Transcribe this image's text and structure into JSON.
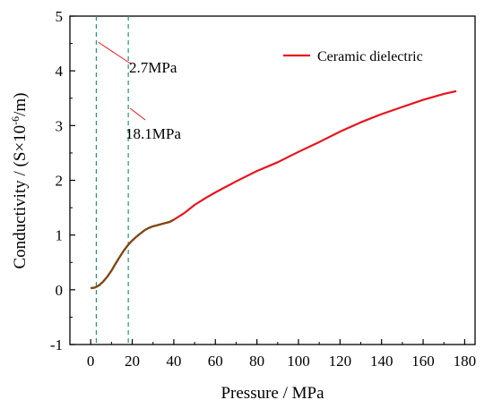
{
  "chart_data": {
    "type": "line",
    "xlabel": "Pressure / MPa",
    "ylabel_prefix": "Conductivity / (S×10",
    "ylabel_exp": "-6",
    "ylabel_suffix": "/m)",
    "xlim": [
      -10,
      185
    ],
    "ylim": [
      -1,
      5
    ],
    "xticks": [
      0,
      20,
      40,
      60,
      80,
      100,
      120,
      140,
      160,
      180
    ],
    "yticks": [
      -1,
      0,
      1,
      2,
      3,
      4,
      5
    ],
    "legend_position": "top-right",
    "series": [
      {
        "name": "Ceramic dielectric",
        "color": "#e8141c",
        "x": [
          0,
          2,
          4,
          6,
          8,
          10,
          12,
          14,
          16,
          18,
          20,
          22,
          24,
          26,
          28,
          30,
          32,
          34,
          36,
          38,
          40,
          45,
          50,
          55,
          60,
          70,
          80,
          90,
          100,
          110,
          120,
          130,
          140,
          150,
          160,
          170,
          176
        ],
        "y": [
          0.03,
          0.04,
          0.08,
          0.15,
          0.24,
          0.35,
          0.48,
          0.6,
          0.72,
          0.82,
          0.9,
          0.97,
          1.03,
          1.09,
          1.13,
          1.16,
          1.18,
          1.2,
          1.22,
          1.24,
          1.28,
          1.4,
          1.55,
          1.67,
          1.78,
          1.98,
          2.17,
          2.33,
          2.52,
          2.7,
          2.89,
          3.06,
          3.21,
          3.34,
          3.47,
          3.58,
          3.63
        ]
      }
    ],
    "overlap_region": {
      "x_end": 40,
      "color": "#7a4a12"
    },
    "annotations": [
      {
        "label": "2.7MPa",
        "x": 2.7,
        "color": "#1a9a6a"
      },
      {
        "label": "18.1MPa",
        "x": 18.1,
        "color": "#1a9a6a"
      }
    ]
  }
}
